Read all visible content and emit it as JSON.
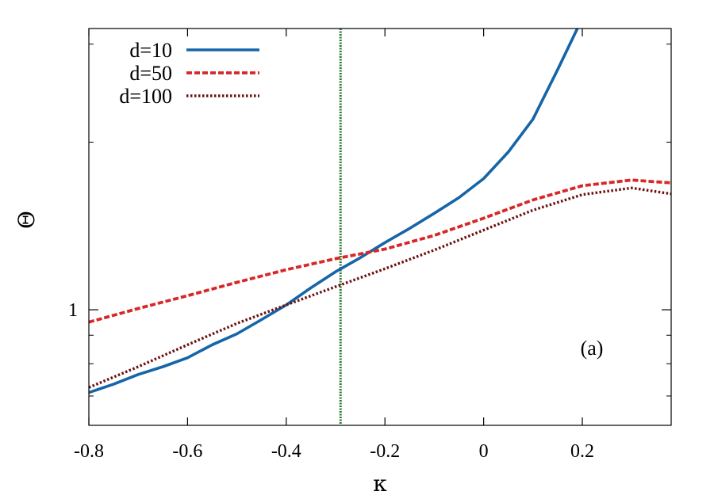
{
  "chart_data": {
    "type": "line",
    "xlabel": "κ",
    "ylabel": "Θ",
    "xlim": [
      -0.8,
      0.38
    ],
    "ylim": [
      0.62,
      3.2
    ],
    "y_scale": "log",
    "x_ticks": [
      -0.8,
      -0.6,
      -0.4,
      -0.2,
      0,
      0.2
    ],
    "x_tick_labels": [
      "-0.8",
      "-0.6",
      "-0.4",
      "-0.2",
      "0",
      "0.2"
    ],
    "y_major_ticks": [
      1
    ],
    "y_tick_labels": [
      "1"
    ],
    "y_minor_ticks": [
      0.7,
      0.8,
      0.9,
      2,
      3
    ],
    "grid": false,
    "legend_position": "top-left",
    "annotation": "(a)",
    "vline": {
      "x": -0.29,
      "color": "#2e7d32"
    },
    "series": [
      {
        "name": "d=10",
        "color": "#1565a8",
        "style": "solid",
        "x": [
          -0.8,
          -0.75,
          -0.7,
          -0.65,
          -0.6,
          -0.55,
          -0.5,
          -0.45,
          -0.4,
          -0.35,
          -0.3,
          -0.25,
          -0.2,
          -0.15,
          -0.1,
          -0.05,
          0,
          0.05,
          0.1,
          0.15,
          0.19
        ],
        "y": [
          0.71,
          0.735,
          0.765,
          0.79,
          0.82,
          0.865,
          0.905,
          0.96,
          1.02,
          1.095,
          1.17,
          1.24,
          1.32,
          1.4,
          1.49,
          1.59,
          1.72,
          1.92,
          2.2,
          2.7,
          3.2
        ]
      },
      {
        "name": "d=50",
        "color": "#d62828",
        "style": "dashed",
        "x": [
          -0.8,
          -0.7,
          -0.6,
          -0.5,
          -0.4,
          -0.3,
          -0.2,
          -0.1,
          0,
          0.1,
          0.2,
          0.3,
          0.38
        ],
        "y": [
          0.95,
          1.005,
          1.06,
          1.12,
          1.18,
          1.235,
          1.285,
          1.36,
          1.46,
          1.575,
          1.67,
          1.71,
          1.69
        ]
      },
      {
        "name": "d=100",
        "color": "#6b1010",
        "style": "dotted",
        "x": [
          -0.8,
          -0.7,
          -0.6,
          -0.5,
          -0.4,
          -0.3,
          -0.2,
          -0.1,
          0,
          0.1,
          0.2,
          0.3,
          0.38
        ],
        "y": [
          0.725,
          0.79,
          0.865,
          0.945,
          1.02,
          1.1,
          1.185,
          1.28,
          1.39,
          1.51,
          1.61,
          1.655,
          1.615
        ]
      }
    ]
  }
}
